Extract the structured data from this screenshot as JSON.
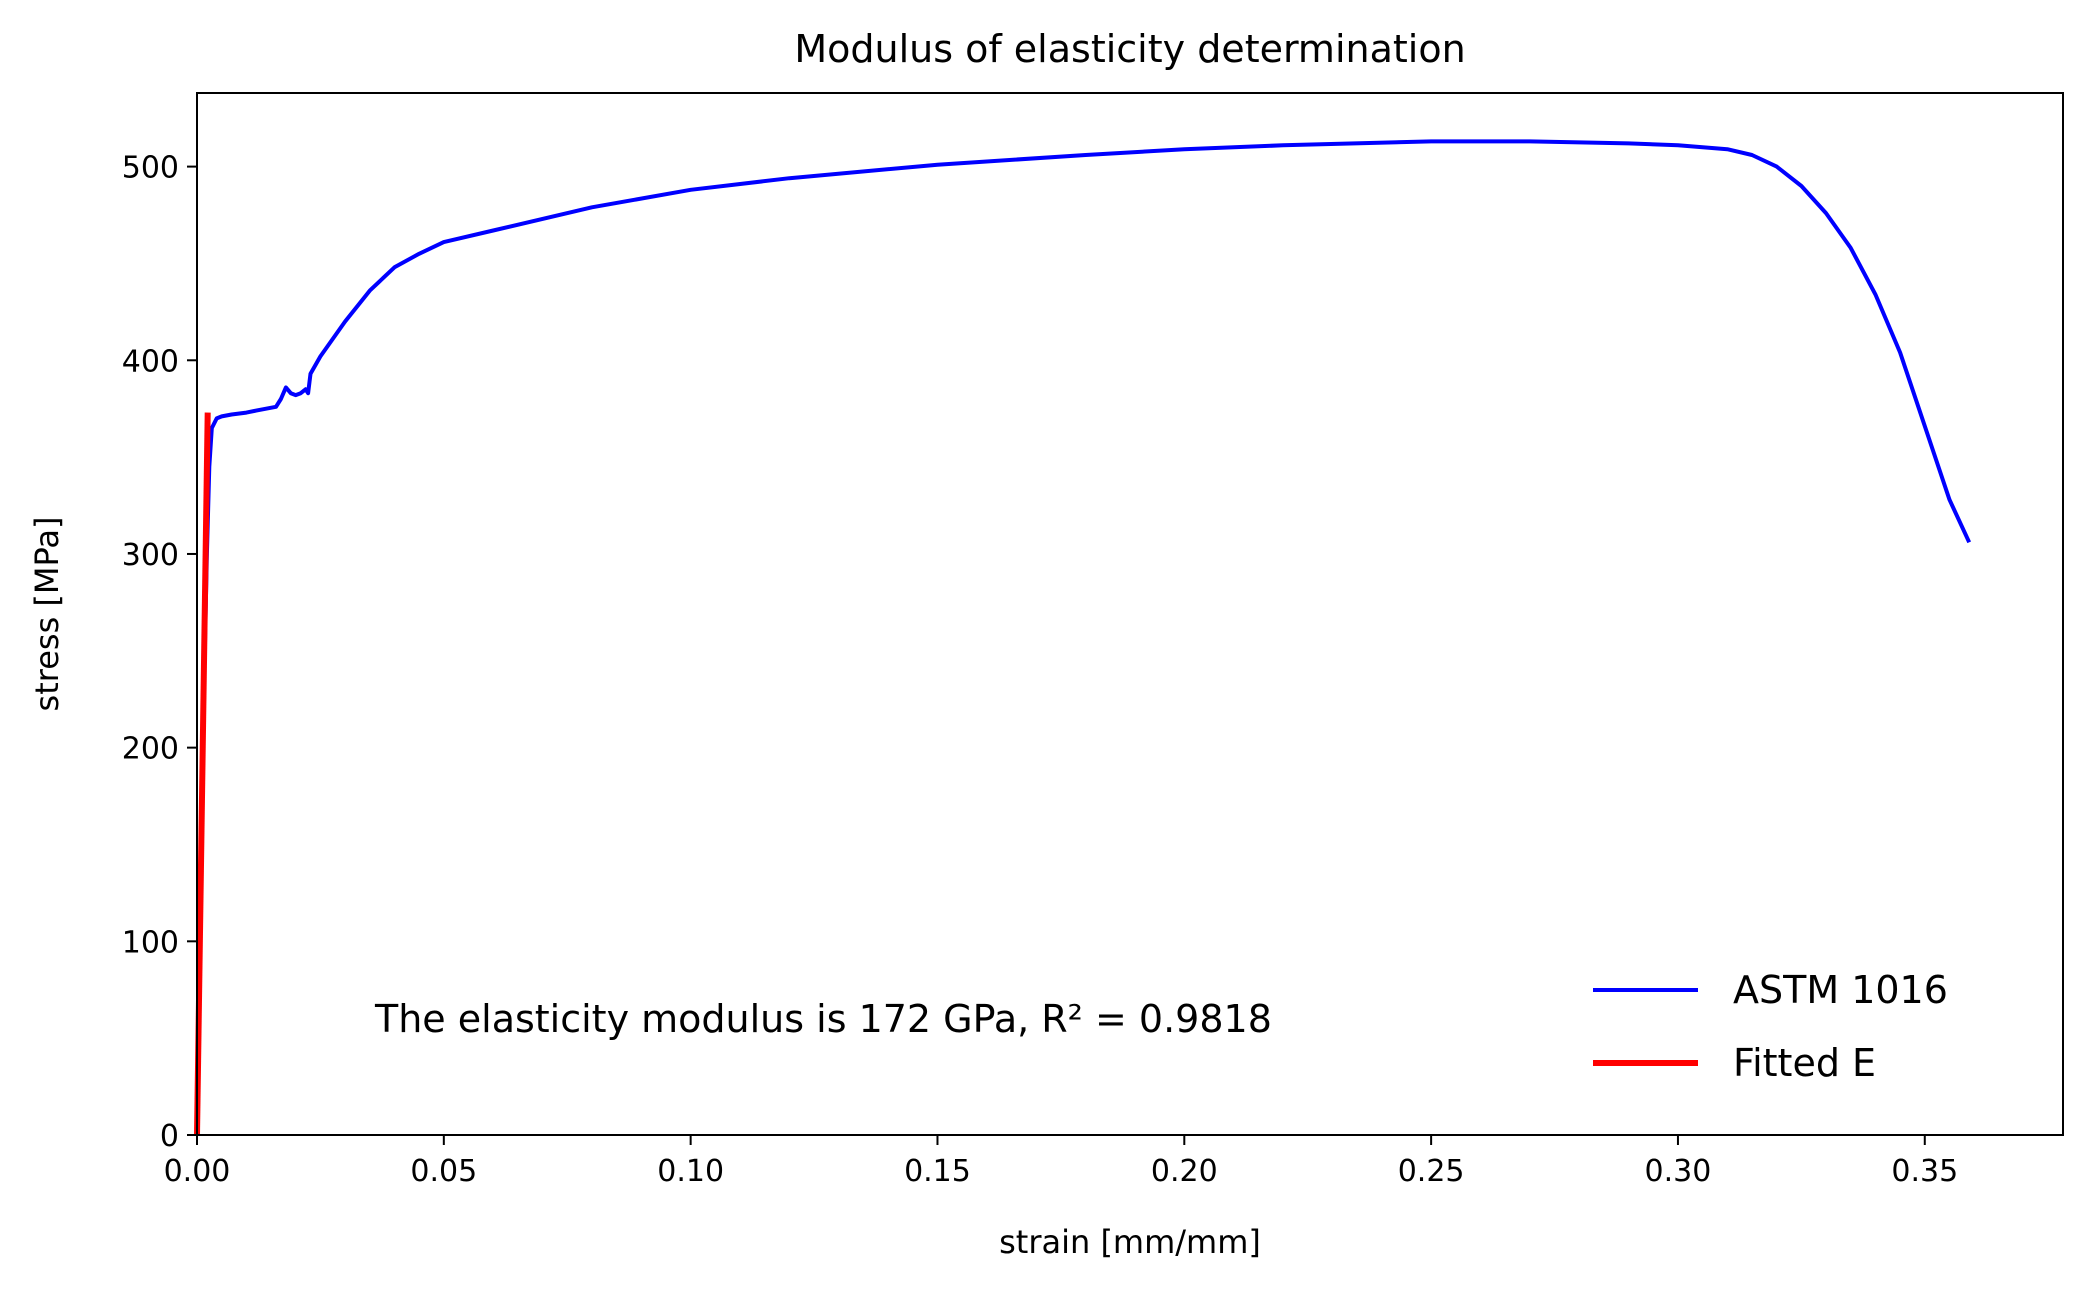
{
  "chart_data": {
    "type": "line",
    "title": "Modulus of elasticity determination",
    "xlabel": "strain [mm/mm]",
    "ylabel": "stress [MPa]",
    "xlim": [
      0.0,
      0.378
    ],
    "ylim": [
      0,
      538
    ],
    "x_ticks": [
      0.0,
      0.05,
      0.1,
      0.15,
      0.2,
      0.25,
      0.3,
      0.35
    ],
    "x_tick_labels": [
      "0.00",
      "0.05",
      "0.10",
      "0.15",
      "0.20",
      "0.25",
      "0.30",
      "0.35"
    ],
    "y_ticks": [
      0,
      100,
      200,
      300,
      400,
      500
    ],
    "y_tick_labels": [
      "0",
      "100",
      "200",
      "300",
      "400",
      "500"
    ],
    "grid": false,
    "legend_position": "bottom-right",
    "annotation": "The elasticity modulus is 172 GPa, R² = 0.9818",
    "series": [
      {
        "name": "ASTM 1016",
        "color": "#0000ff",
        "x": [
          0.0,
          0.0005,
          0.001,
          0.0015,
          0.002,
          0.0025,
          0.003,
          0.004,
          0.005,
          0.007,
          0.01,
          0.012,
          0.014,
          0.016,
          0.017,
          0.018,
          0.019,
          0.02,
          0.021,
          0.022,
          0.0225,
          0.023,
          0.025,
          0.03,
          0.035,
          0.04,
          0.045,
          0.05,
          0.06,
          0.08,
          0.1,
          0.12,
          0.15,
          0.18,
          0.2,
          0.22,
          0.25,
          0.27,
          0.29,
          0.3,
          0.31,
          0.315,
          0.32,
          0.325,
          0.33,
          0.335,
          0.34,
          0.345,
          0.35,
          0.355,
          0.359
        ],
        "y": [
          0,
          80,
          160,
          240,
          300,
          345,
          365,
          370,
          371,
          372,
          373,
          374,
          375,
          376,
          380,
          386,
          383,
          382,
          383,
          385,
          383,
          393,
          402,
          420,
          436,
          448,
          455,
          461,
          467,
          479,
          488,
          494,
          501,
          506,
          509,
          511,
          513,
          513,
          512,
          511,
          509,
          506,
          500,
          490,
          476,
          458,
          434,
          404,
          366,
          328,
          306
        ]
      },
      {
        "name": "Fitted E",
        "color": "#ff0000",
        "x": [
          0.0,
          0.00217
        ],
        "y": [
          0,
          373
        ]
      }
    ]
  }
}
